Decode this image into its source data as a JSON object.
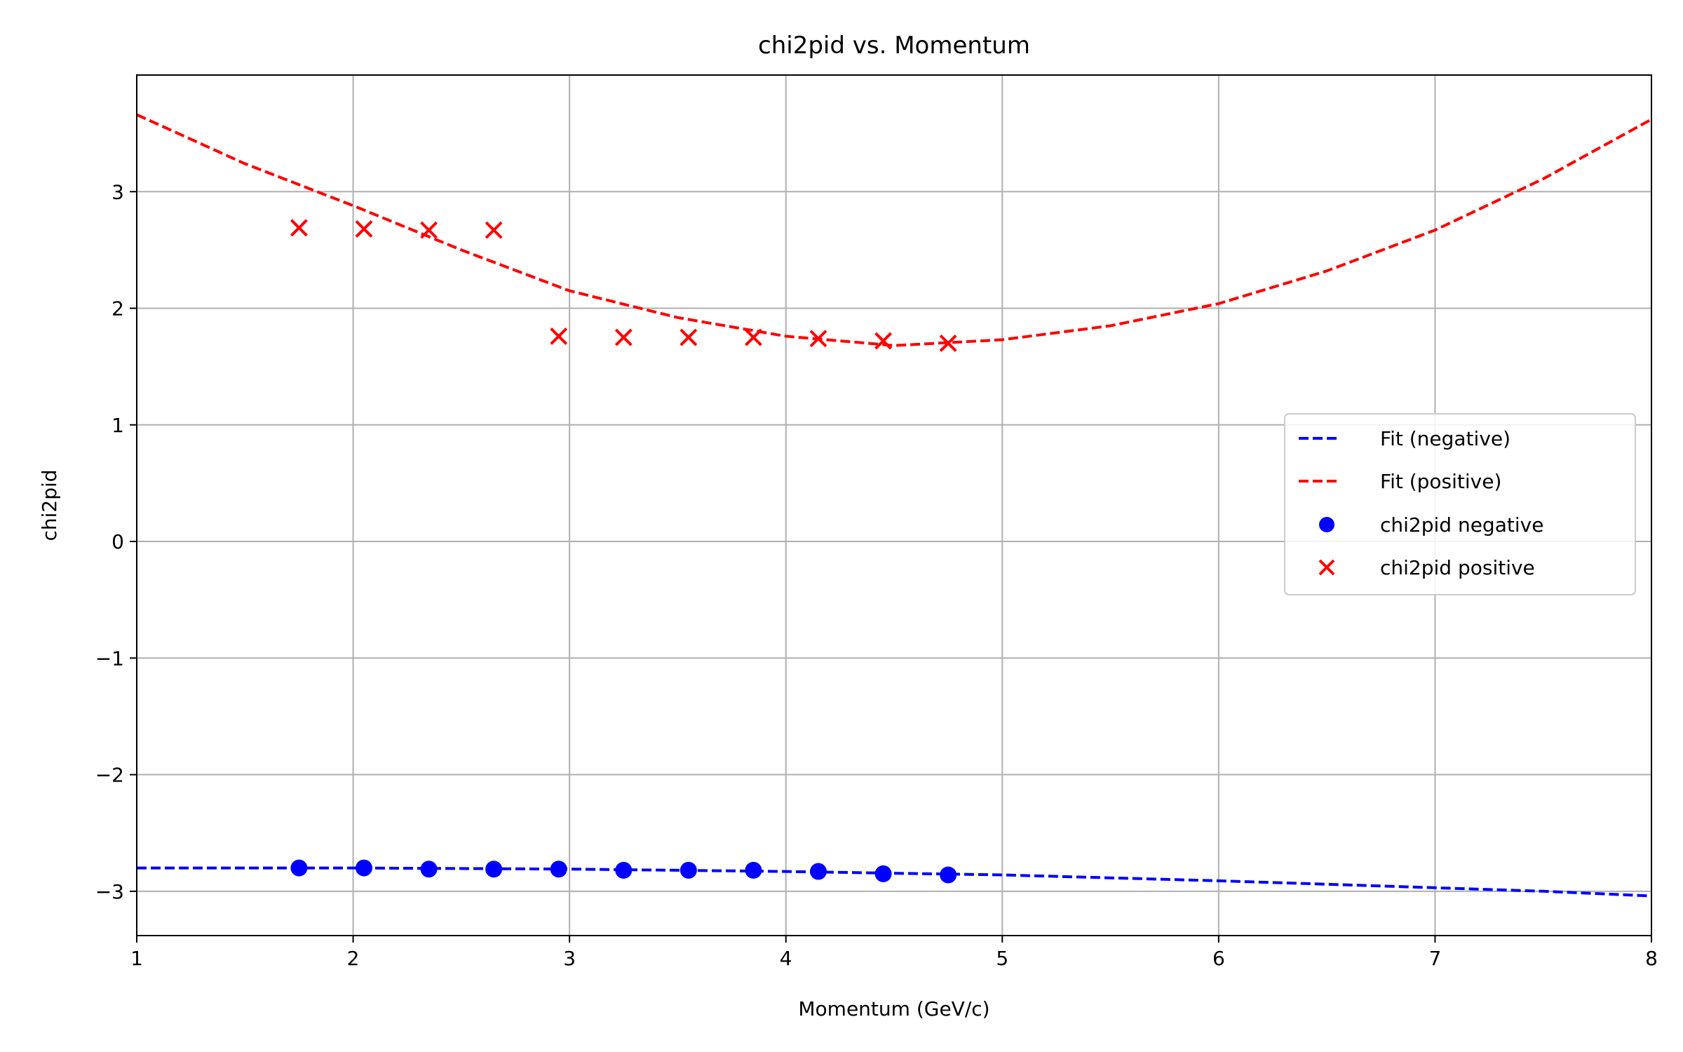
{
  "chart_data": {
    "type": "line",
    "title": "chi2pid vs. Momentum",
    "xlabel": "Momentum (GeV/c)",
    "ylabel": "chi2pid",
    "xlim": [
      1,
      8
    ],
    "ylim": [
      -3.38,
      4.0
    ],
    "xticks": [
      1,
      2,
      3,
      4,
      5,
      6,
      7,
      8
    ],
    "xtick_labels": [
      "1",
      "2",
      "3",
      "4",
      "5",
      "6",
      "7",
      "8"
    ],
    "yticks": [
      -3,
      -2,
      -1,
      0,
      1,
      2,
      3
    ],
    "ytick_labels": [
      "−3",
      "−2",
      "−1",
      "0",
      "1",
      "2",
      "3"
    ],
    "grid": true,
    "legend_position": "center-right",
    "series": [
      {
        "name": "Fit (negative)",
        "kind": "line",
        "style": "dashed",
        "color": "#0000ff",
        "x": [
          1.0,
          1.5,
          2.0,
          2.5,
          3.0,
          3.5,
          4.0,
          4.5,
          5.0,
          5.5,
          6.0,
          6.5,
          7.0,
          7.5,
          8.0
        ],
        "y": [
          -2.8,
          -2.8,
          -2.8,
          -2.805,
          -2.81,
          -2.82,
          -2.83,
          -2.845,
          -2.86,
          -2.885,
          -2.91,
          -2.94,
          -2.97,
          -3.0,
          -3.04
        ]
      },
      {
        "name": "Fit (positive)",
        "kind": "line",
        "style": "dashed",
        "color": "#ff0000",
        "x": [
          1.0,
          1.5,
          2.0,
          2.5,
          3.0,
          3.5,
          4.0,
          4.5,
          5.0,
          5.5,
          6.0,
          6.5,
          7.0,
          7.5,
          8.0
        ],
        "y": [
          3.66,
          3.24,
          2.88,
          2.5,
          2.15,
          1.92,
          1.76,
          1.68,
          1.73,
          1.85,
          2.04,
          2.32,
          2.67,
          3.11,
          3.62
        ]
      },
      {
        "name": "chi2pid negative",
        "kind": "scatter",
        "marker": "circle",
        "color": "#0000ff",
        "x": [
          1.75,
          2.05,
          2.35,
          2.65,
          2.95,
          3.25,
          3.55,
          3.85,
          4.15,
          4.45,
          4.75
        ],
        "y": [
          -2.8,
          -2.8,
          -2.81,
          -2.81,
          -2.81,
          -2.82,
          -2.82,
          -2.82,
          -2.83,
          -2.85,
          -2.86
        ]
      },
      {
        "name": "chi2pid positive",
        "kind": "scatter",
        "marker": "x",
        "color": "#ff0000",
        "x": [
          1.75,
          2.05,
          2.35,
          2.65,
          2.95,
          3.25,
          3.55,
          3.85,
          4.15,
          4.45,
          4.75
        ],
        "y": [
          2.69,
          2.68,
          2.67,
          2.67,
          1.76,
          1.75,
          1.75,
          1.75,
          1.74,
          1.72,
          1.7
        ]
      }
    ]
  }
}
